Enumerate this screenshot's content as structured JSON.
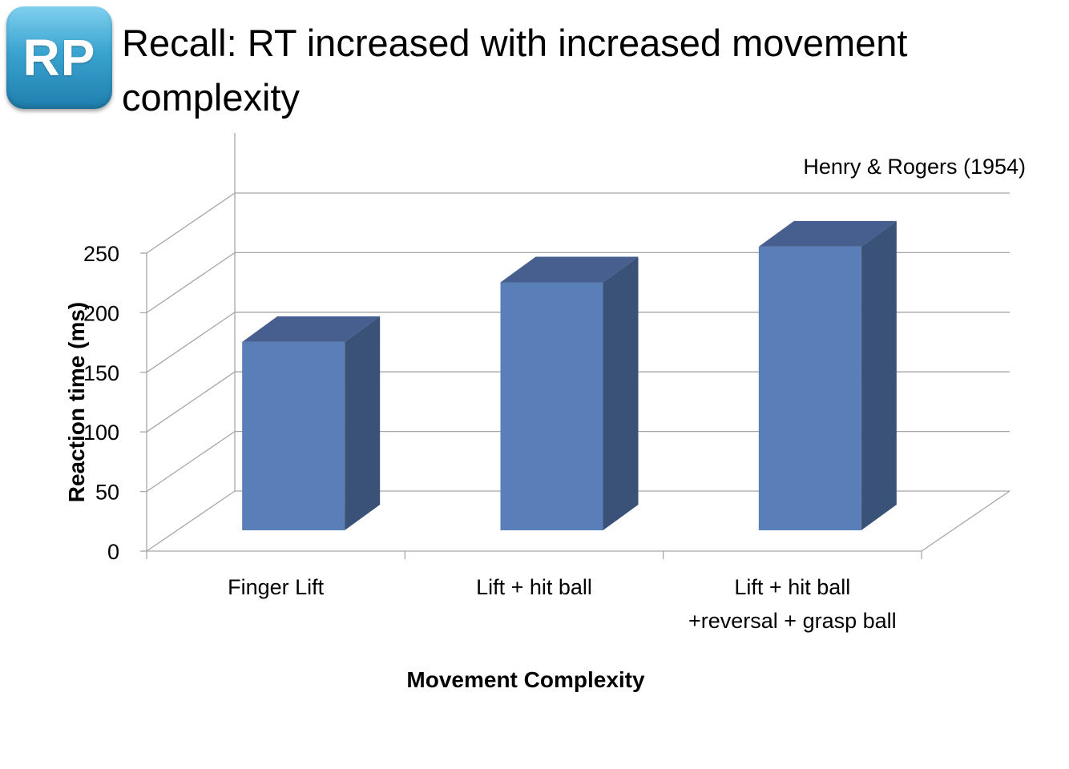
{
  "badge": {
    "text": "RP"
  },
  "slide": {
    "title": "Recall: RT increased with increased movement complexity"
  },
  "chart_data": {
    "type": "bar",
    "categories": [
      "Finger Lift",
      "Lift + hit ball",
      [
        "Lift + hit ball",
        "+reversal + grasp ball"
      ]
    ],
    "values": [
      158,
      208,
      238
    ],
    "xlabel": "Movement Complexity",
    "ylabel": "Reaction time (ms)",
    "ylim": [
      0,
      250
    ],
    "yticks": [
      0,
      50,
      100,
      150,
      200,
      250
    ],
    "annotation": "Henry & Rogers (1954)",
    "grid": true,
    "legend": "none",
    "colors": {
      "bar_front": "#5a7fb8",
      "bar_side": "#3a5278",
      "bar_top": "#465f8e",
      "grid": "#a6a6a6"
    }
  }
}
